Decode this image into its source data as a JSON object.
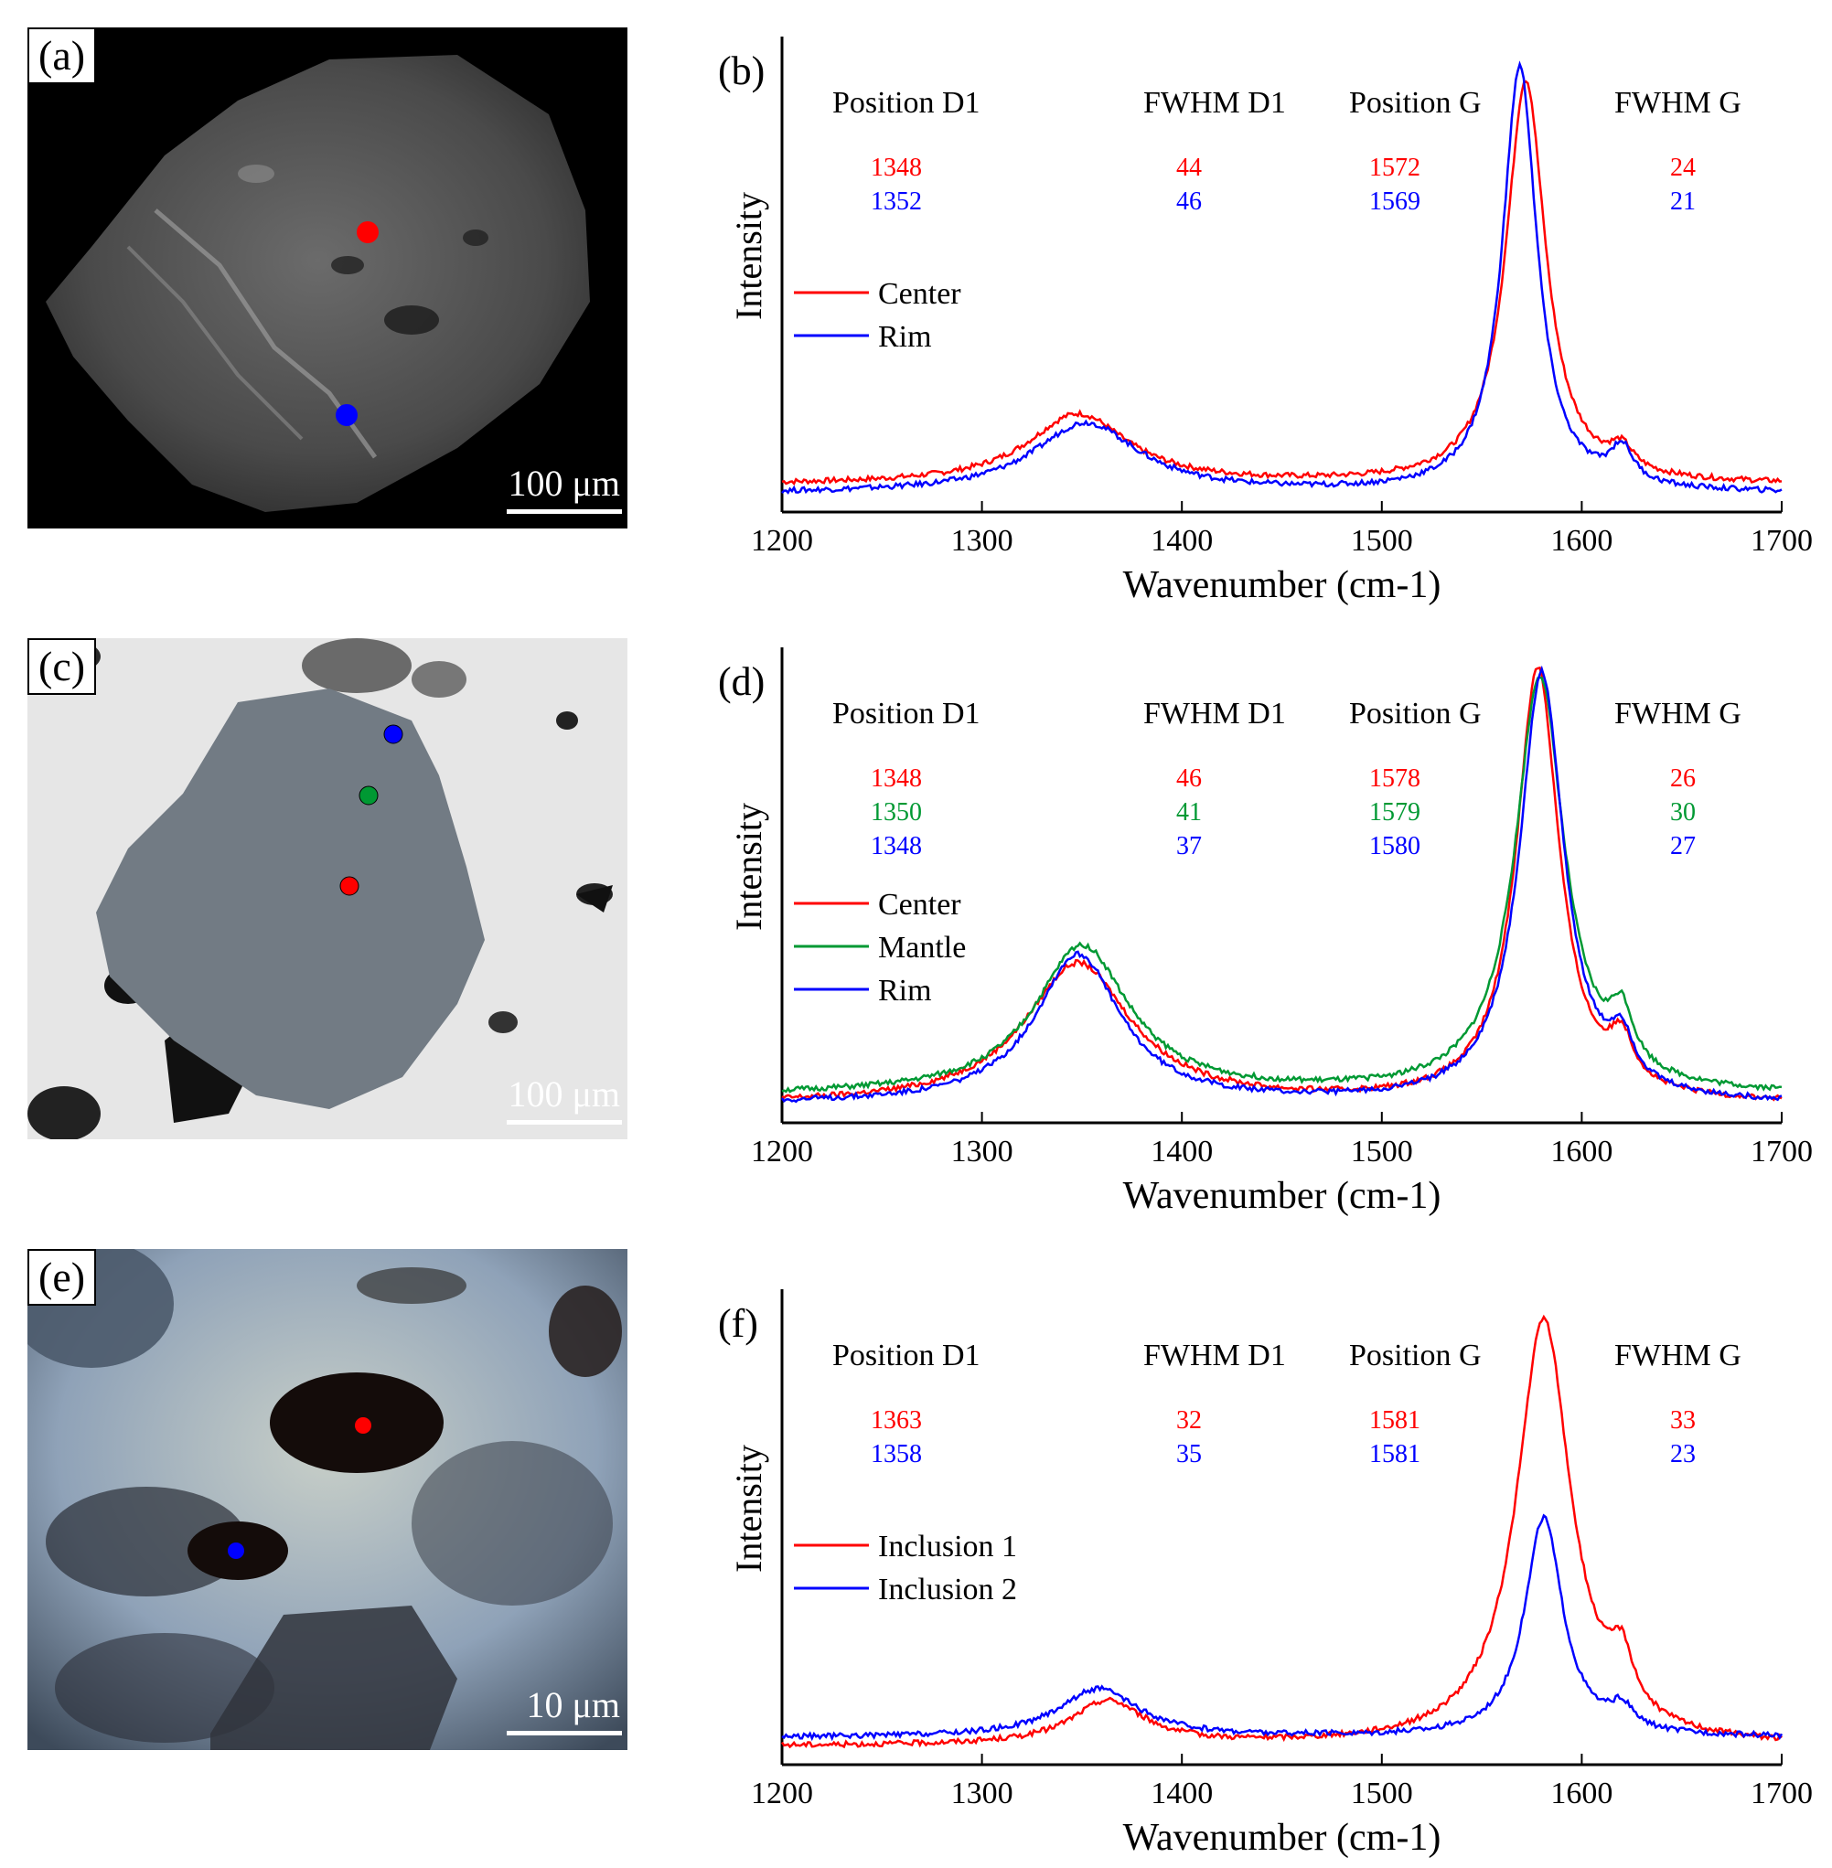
{
  "panels": {
    "a": {
      "label": "(a)",
      "scale": "100 μm",
      "dot_colors": [
        "#ff0000",
        "#0000ff"
      ]
    },
    "c": {
      "label": "(c)",
      "scale": "100 μm",
      "dot_colors": [
        "#0000ff",
        "#009933",
        "#ff0000"
      ]
    },
    "e": {
      "label": "(e)",
      "scale": "10 μm",
      "dot_colors": [
        "#ff0000",
        "#0000ff"
      ]
    }
  },
  "chart_data": [
    {
      "id": "b",
      "type": "line",
      "panel_label": "(b)",
      "xlabel": "Wavenumber (cm-1)",
      "ylabel": "Intensity",
      "xlim": [
        1200,
        1700
      ],
      "xticks": [
        1200,
        1300,
        1400,
        1500,
        1600,
        1700
      ],
      "columns": [
        "Position D1",
        "FWHM D1",
        "Position G",
        "FWHM G"
      ],
      "series": [
        {
          "name": "Center",
          "color": "#ff0000",
          "values": [
            1348,
            44,
            1572,
            24
          ],
          "baseline": 0.02,
          "d_peak": 0.16,
          "g_peak": 0.92,
          "shoulder": 0.05
        },
        {
          "name": "Rim",
          "color": "#0000ff",
          "values": [
            1352,
            46,
            1569,
            21
          ],
          "baseline": 0.0,
          "d_peak": 0.16,
          "g_peak": 0.97,
          "shoulder": 0.08
        }
      ]
    },
    {
      "id": "d",
      "type": "line",
      "panel_label": "(d)",
      "xlabel": "Wavenumber (cm-1)",
      "ylabel": "Intensity",
      "xlim": [
        1200,
        1700
      ],
      "xticks": [
        1200,
        1300,
        1400,
        1500,
        1600,
        1700
      ],
      "columns": [
        "Position D1",
        "FWHM D1",
        "Position G",
        "FWHM G"
      ],
      "series": [
        {
          "name": "Center",
          "color": "#ff0000",
          "values": [
            1348,
            46,
            1578,
            26
          ],
          "baseline": 0.0,
          "d_peak": 0.32,
          "g_peak": 0.99,
          "shoulder": 0.1
        },
        {
          "name": "Mantle",
          "color": "#009933",
          "values": [
            1350,
            41,
            1579,
            30
          ],
          "baseline": 0.02,
          "d_peak": 0.34,
          "g_peak": 0.95,
          "shoulder": 0.12
        },
        {
          "name": "Rim",
          "color": "#0000ff",
          "values": [
            1348,
            37,
            1580,
            27
          ],
          "baseline": 0.0,
          "d_peak": 0.34,
          "g_peak": 0.98,
          "shoulder": 0.1
        }
      ]
    },
    {
      "id": "f",
      "type": "line",
      "panel_label": "(f)",
      "xlabel": "Wavenumber (cm-1)",
      "ylabel": "Intensity",
      "xlim": [
        1200,
        1700
      ],
      "xticks": [
        1200,
        1300,
        1400,
        1500,
        1600,
        1700
      ],
      "columns": [
        "Position D1",
        "FWHM D1",
        "Position G",
        "FWHM G"
      ],
      "series": [
        {
          "name": "Inclusion 1",
          "color": "#ff0000",
          "values": [
            1363,
            32,
            1581,
            33
          ],
          "baseline": 0.0,
          "d_peak": 0.1,
          "g_peak": 0.97,
          "shoulder": 0.12
        },
        {
          "name": "Inclusion 2",
          "color": "#0000ff",
          "values": [
            1358,
            35,
            1581,
            23
          ],
          "baseline": 0.02,
          "d_peak": 0.11,
          "g_peak": 0.5,
          "shoulder": 0.05
        }
      ]
    }
  ]
}
